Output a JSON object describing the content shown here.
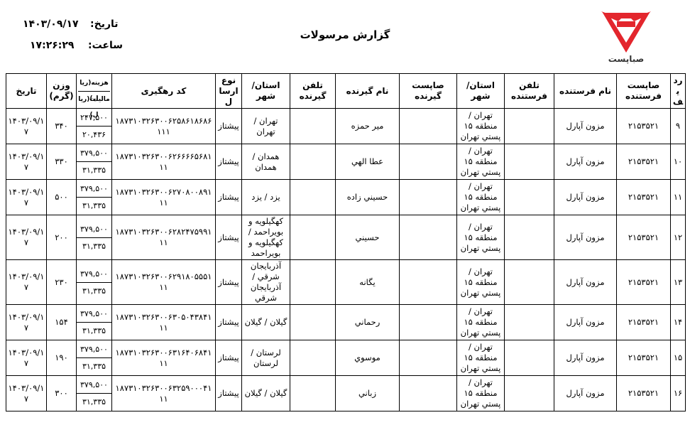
{
  "header": {
    "logo_text": "صباپست",
    "title": "گزارش مرسولات",
    "date_label": "تاریخ:",
    "date": "۱۴۰۳/۰۹/۱۷",
    "time_label": "ساعت:",
    "time": "۱۷:۲۶:۲۹"
  },
  "table": {
    "columns": [
      "ردیف",
      "صاپست فرستنده",
      "نام فرستنده",
      "تلفن فرستنده",
      "استان/ شهر",
      "صاپست گیرنده",
      "نام گیرنده",
      "تلفن گیرنده",
      "استان/ شهر",
      "نوع ارسال",
      "کد رهگیری",
      [
        "هزینه(ریال)",
        "مالیات(ریال)"
      ],
      "وزن (گرم)",
      "تاریخ"
    ],
    "rows": [
      {
        "no": "۹",
        "sender_sapost": "۲۱۵۳۵۲۱",
        "sender_name": "مزون آپارل",
        "sender_province": "تهران / منطقه ۱۵ پستي تهران",
        "receiver_name": "مير حمزه",
        "receiver_province": "تهران / تهران",
        "type": "پيشتاز",
        "tracking": "۱۸۷۳۱۰۳۲۶۳۰۰۶۲۵۸۶۱۸۶۸۶۱۱۱",
        "cost": "۲۴۷,۵۰۰",
        "tax": "۲۰,۴۳۶",
        "weight": "۳۴۰",
        "date": "۱۴۰۳/۰۹/۱۷"
      },
      {
        "no": "۱۰",
        "sender_sapost": "۲۱۵۳۵۲۱",
        "sender_name": "مزون آپارل",
        "sender_province": "تهران / منطقه ۱۵ پستي تهران",
        "receiver_name": "عطا الهي",
        "receiver_province": "همدان / همدان",
        "type": "پيشتاز",
        "tracking": "۱۸۷۳۱۰۳۲۶۳۰۰۶۲۶۶۶۶۵۶۸۱۱۱",
        "cost": "۳۷۹,۵۰۰",
        "tax": "۳۱,۳۳۵",
        "weight": "۳۳۰",
        "date": "۱۴۰۳/۰۹/۱۷"
      },
      {
        "no": "۱۱",
        "sender_sapost": "۲۱۵۳۵۲۱",
        "sender_name": "مزون آپارل",
        "sender_province": "تهران / منطقه ۱۵ پستي تهران",
        "receiver_name": "حسيني زاده",
        "receiver_province": "يزد / يزد",
        "type": "پيشتاز",
        "tracking": "۱۸۷۳۱۰۳۲۶۳۰۰۶۲۷۰۸۰۰۸۹۱۱۱",
        "cost": "۳۷۹,۵۰۰",
        "tax": "۳۱,۳۳۵",
        "weight": "۵۰۰",
        "date": "۱۴۰۳/۰۹/۱۷"
      },
      {
        "no": "۱۲",
        "sender_sapost": "۲۱۵۳۵۲۱",
        "sender_name": "مزون آپارل",
        "sender_province": "تهران / منطقه ۱۵ پستي تهران",
        "receiver_name": "حسيني",
        "receiver_province": "كهگيلويه و بويراحمد / كهگيلويه و بويراحمد",
        "type": "پيشتاز",
        "tracking": "۱۸۷۳۱۰۳۲۶۳۰۰۶۲۸۲۴۷۵۹۹۱۱۱",
        "cost": "۳۷۹,۵۰۰",
        "tax": "۳۱,۳۳۵",
        "weight": "۲۰۰",
        "date": "۱۴۰۳/۰۹/۱۷"
      },
      {
        "no": "۱۳",
        "sender_sapost": "۲۱۵۳۵۲۱",
        "sender_name": "مزون آپارل",
        "sender_province": "تهران / منطقه ۱۵ پستي تهران",
        "receiver_name": "يگانه",
        "receiver_province": "آذربايجان شرقي / آذربايجان شرقي",
        "type": "پيشتاز",
        "tracking": "۱۸۷۳۱۰۳۲۶۳۰۰۶۲۹۱۸۰۵۵۵۱۱۱",
        "cost": "۳۷۹,۵۰۰",
        "tax": "۳۱,۳۳۵",
        "weight": "۲۳۰",
        "date": "۱۴۰۳/۰۹/۱۷"
      },
      {
        "no": "۱۴",
        "sender_sapost": "۲۱۵۳۵۲۱",
        "sender_name": "مزون آپارل",
        "sender_province": "تهران / منطقه ۱۵ پستي تهران",
        "receiver_name": "رحماني",
        "receiver_province": "گيلان / گيلان",
        "type": "پيشتاز",
        "tracking": "۱۸۷۳۱۰۳۲۶۳۰۰۶۳۰۵۰۴۳۸۴۱۱۱",
        "cost": "۳۷۹,۵۰۰",
        "tax": "۳۱,۳۳۵",
        "weight": "۱۵۴",
        "date": "۱۴۰۳/۰۹/۱۷"
      },
      {
        "no": "۱۵",
        "sender_sapost": "۲۱۵۳۵۲۱",
        "sender_name": "مزون آپارل",
        "sender_province": "تهران / منطقه ۱۵ پستي تهران",
        "receiver_name": "موسوي",
        "receiver_province": "لرستان / لرستان",
        "type": "پيشتاز",
        "tracking": "۱۸۷۳۱۰۳۲۶۳۰۰۶۳۱۶۴۰۶۸۴۱۱۱",
        "cost": "۳۷۹,۵۰۰",
        "tax": "۳۱,۳۳۵",
        "weight": "۱۹۰",
        "date": "۱۴۰۳/۰۹/۱۷"
      },
      {
        "no": "۱۶",
        "sender_sapost": "۲۱۵۳۵۲۱",
        "sender_name": "مزون آپارل",
        "sender_province": "تهران / منطقه ۱۵ پستي تهران",
        "receiver_name": "زباني",
        "receiver_province": "گيلان / گيلان",
        "type": "پيشتاز",
        "tracking": "۱۸۷۳۱۰۳۲۶۳۰۰۶۳۲۵۹۰۰۰۴۱۱۱",
        "cost": "۳۷۹,۵۰۰",
        "tax": "۳۱,۳۳۵",
        "weight": "۳۰۰",
        "date": "۱۴۰۳/۰۹/۱۷"
      }
    ]
  }
}
